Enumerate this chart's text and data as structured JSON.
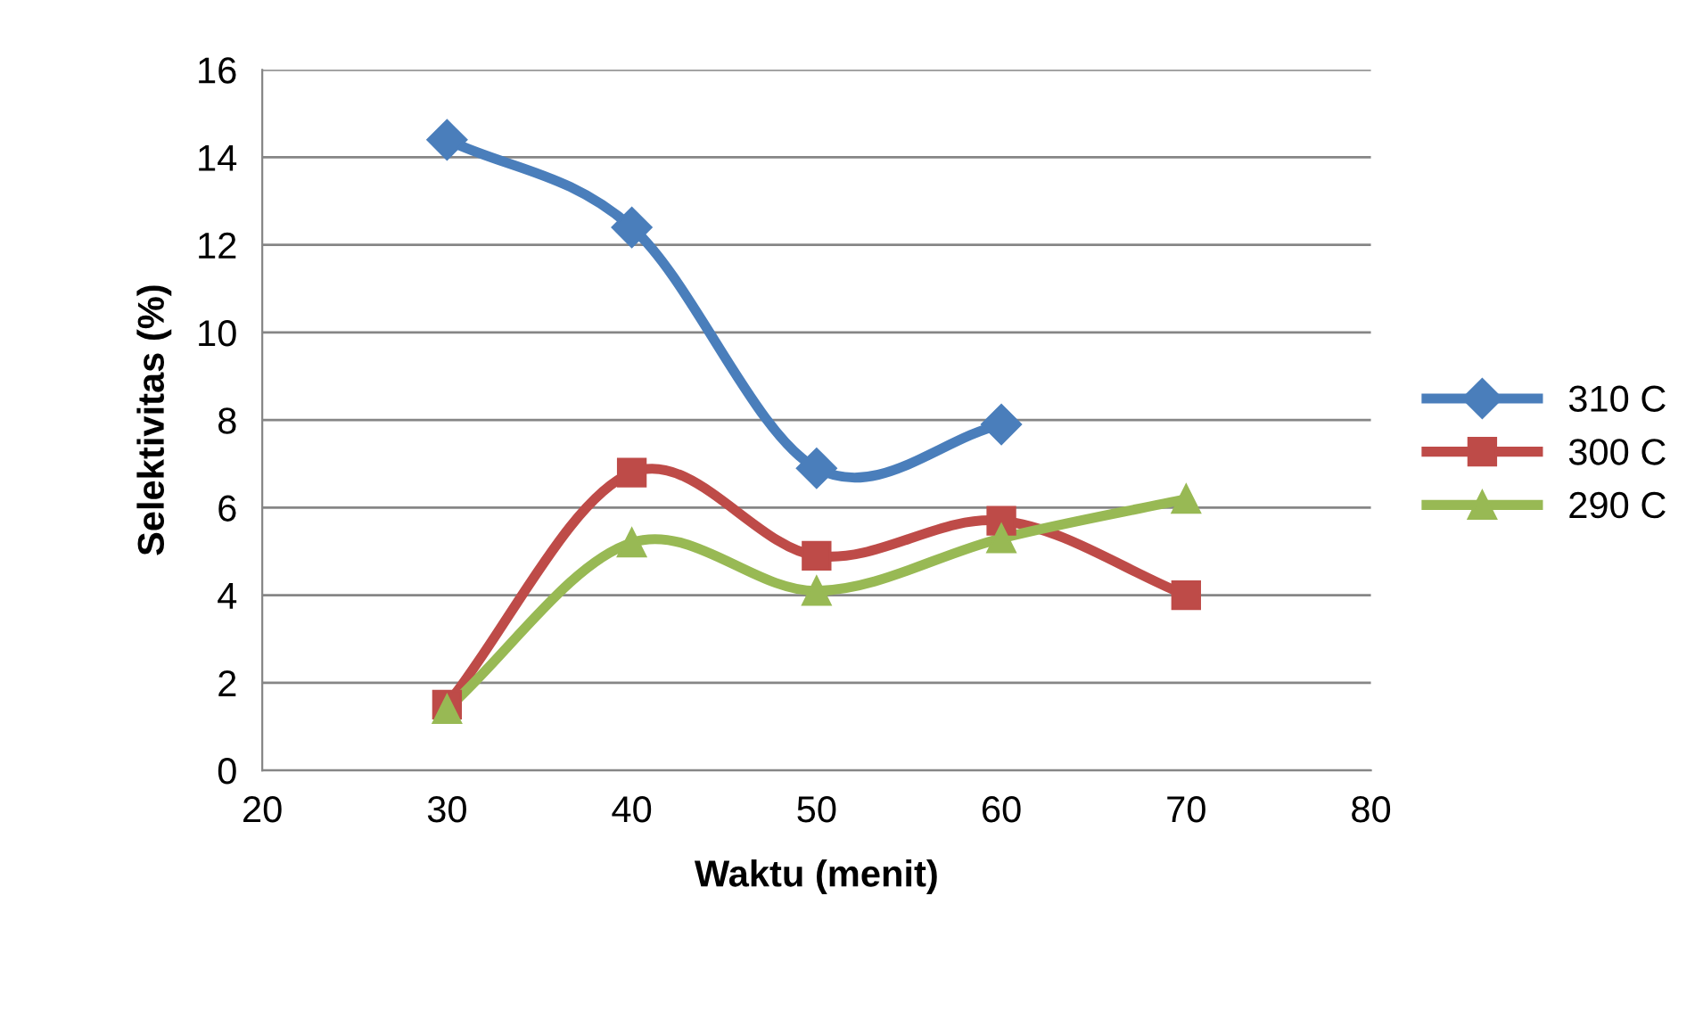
{
  "chart_data": {
    "type": "line",
    "xlabel": "Waktu (menit)",
    "ylabel": "Selektivitas (%)",
    "xlim": [
      20,
      80
    ],
    "xticks": [
      20,
      30,
      40,
      50,
      60,
      70,
      80
    ],
    "ylim": [
      0,
      16
    ],
    "yticks": [
      0,
      2,
      4,
      6,
      8,
      10,
      12,
      14,
      16
    ],
    "grid": "y",
    "legend": "right",
    "line_style": "solid",
    "series": [
      {
        "name": "310 C",
        "color": "#4a7ebb",
        "marker": "diamond",
        "x": [
          30,
          40,
          50,
          60
        ],
        "values": [
          14.4,
          12.4,
          6.9,
          7.9
        ]
      },
      {
        "name": "300 C",
        "color": "#be4b48",
        "marker": "square",
        "x": [
          30,
          40,
          50,
          60,
          70
        ],
        "values": [
          1.5,
          6.8,
          4.9,
          5.7,
          4.0
        ]
      },
      {
        "name": "290 C",
        "color": "#98b954",
        "marker": "triangle",
        "x": [
          30,
          40,
          50,
          60,
          70
        ],
        "values": [
          1.4,
          5.2,
          4.1,
          5.3,
          6.2
        ]
      }
    ]
  }
}
